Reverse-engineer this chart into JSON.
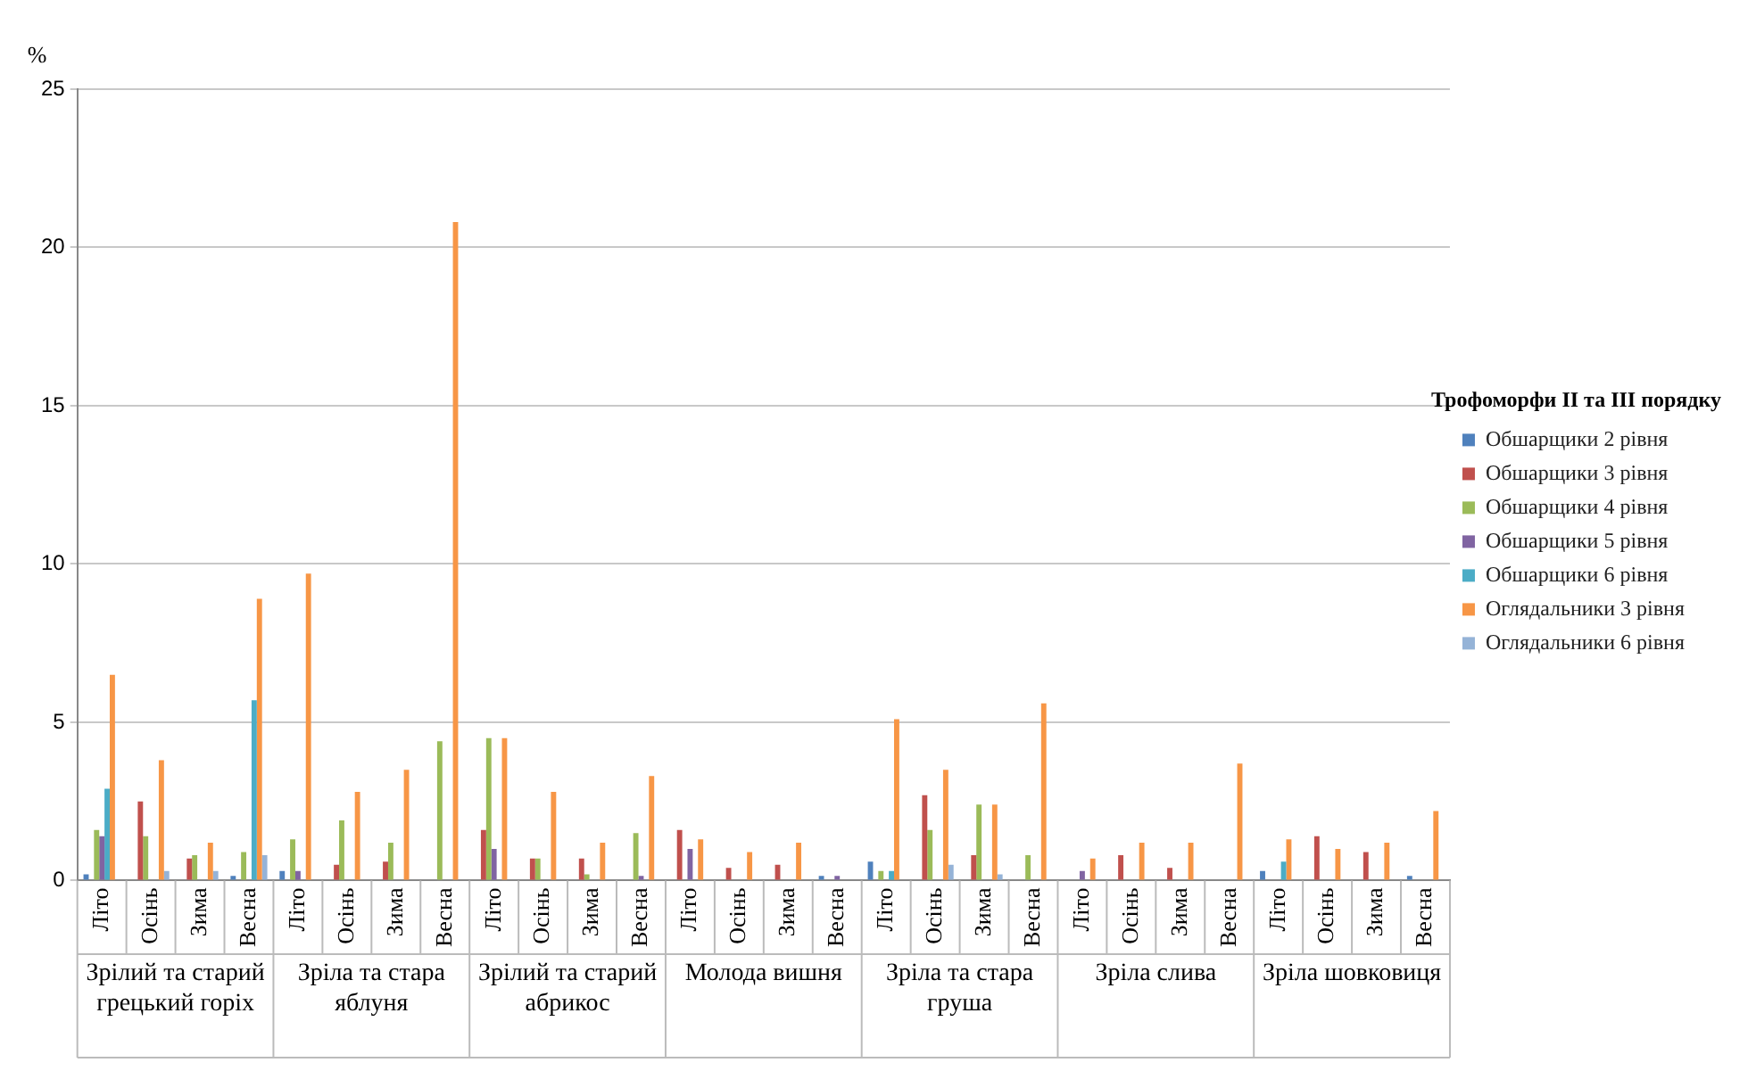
{
  "chart_data": {
    "type": "bar",
    "ylabel": "%",
    "legend_title": "Трофоморфи ІІ та ІІІ порядку",
    "categories": [
      "Літо",
      "Осінь",
      "Зима",
      "Весна",
      "Літо",
      "Осінь",
      "Зима",
      "Весна",
      "Літо",
      "Осінь",
      "Зима",
      "Весна",
      "Літо",
      "Осінь",
      "Зима",
      "Весна",
      "Літо",
      "Осінь",
      "Зима",
      "Весна",
      "Літо",
      "Осінь",
      "Зима",
      "Весна",
      "Літо",
      "Осінь",
      "Зима",
      "Весна"
    ],
    "annotations": [
      "Зрілий та старий грецький горіх",
      "Зріла та стара яблуня",
      "Зрілий та старий абрикос",
      "Молода вишня",
      "Зріла та стара груша",
      "Зріла слива",
      "Зріла шовковиця"
    ],
    "series": [
      {
        "name": "Обшарщики 2 рівня",
        "color": "#4f81bd",
        "values": [
          0.2,
          0,
          0,
          0.15,
          0.3,
          0,
          0,
          0,
          0,
          0,
          0,
          0,
          0,
          0,
          0,
          0.15,
          0.6,
          0,
          0,
          0,
          0,
          0,
          0,
          0,
          0.3,
          0,
          0,
          0.15
        ]
      },
      {
        "name": "Обшарщики 3 рівня",
        "color": "#c0504d",
        "values": [
          0,
          2.5,
          0.7,
          0,
          0,
          0.5,
          0.6,
          0,
          1.6,
          0.7,
          0.7,
          0,
          1.6,
          0.4,
          0.5,
          0,
          0,
          2.7,
          0.8,
          0,
          0,
          0.8,
          0.4,
          0,
          0,
          1.4,
          0.9,
          0
        ]
      },
      {
        "name": "Обшарщики 4 рівня",
        "color": "#9bbb59",
        "values": [
          1.6,
          1.4,
          0.8,
          0.9,
          1.3,
          1.9,
          1.2,
          4.4,
          4.5,
          0.7,
          0.2,
          1.5,
          0,
          0,
          0,
          0,
          0.3,
          1.6,
          2.4,
          0.8,
          0,
          0,
          0,
          0,
          0,
          0,
          0,
          0
        ]
      },
      {
        "name": "Обшарщики 5 рівня",
        "color": "#8064a2",
        "values": [
          1.4,
          0,
          0,
          0,
          0.3,
          0,
          0,
          0,
          1.0,
          0,
          0,
          0.15,
          1.0,
          0,
          0,
          0.15,
          0,
          0,
          0,
          0,
          0.3,
          0,
          0,
          0,
          0,
          0,
          0,
          0
        ]
      },
      {
        "name": "Обшарщики 6 рівня",
        "color": "#4bacc6",
        "values": [
          2.9,
          0,
          0,
          5.7,
          0,
          0,
          0,
          0,
          0,
          0,
          0,
          0,
          0,
          0,
          0,
          0,
          0.3,
          0,
          0,
          0,
          0,
          0,
          0,
          0,
          0.6,
          0,
          0,
          0
        ]
      },
      {
        "name": "Оглядальники 3 рівня",
        "color": "#f79646",
        "values": [
          6.5,
          3.8,
          1.2,
          8.9,
          9.7,
          2.8,
          3.5,
          20.8,
          4.5,
          2.8,
          1.2,
          3.3,
          1.3,
          0.9,
          1.2,
          0,
          5.1,
          3.5,
          2.4,
          5.6,
          0.7,
          1.2,
          1.2,
          3.7,
          1.3,
          1.0,
          1.2,
          2.2
        ]
      },
      {
        "name": "Оглядальники 6 рівня",
        "color": "#95b3d7",
        "values": [
          0,
          0.3,
          0.3,
          0.8,
          0,
          0,
          0,
          0,
          0,
          0,
          0,
          0,
          0,
          0,
          0,
          0,
          0,
          0.5,
          0.2,
          0,
          0,
          0,
          0,
          0,
          0,
          0,
          0,
          0
        ]
      }
    ],
    "ylim": [
      0,
      25
    ],
    "yticks": [
      0,
      5,
      10,
      15,
      20,
      25
    ],
    "grid": "y",
    "legend": "right"
  }
}
